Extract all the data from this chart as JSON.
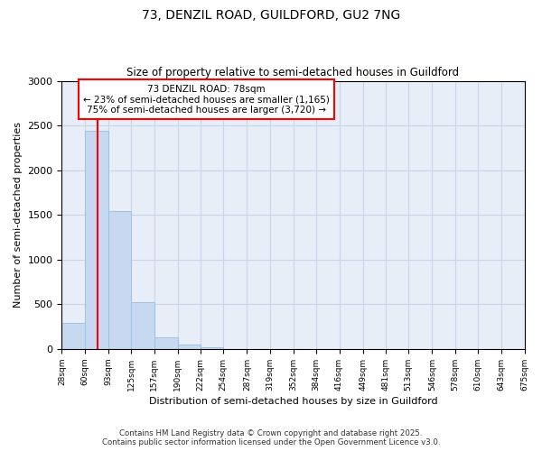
{
  "title1": "73, DENZIL ROAD, GUILDFORD, GU2 7NG",
  "title2": "Size of property relative to semi-detached houses in Guildford",
  "xlabel": "Distribution of semi-detached houses by size in Guildford",
  "ylabel": "Number of semi-detached properties",
  "property_label": "73 DENZIL ROAD: 78sqm",
  "annotation_line": "← 23% of semi-detached houses are smaller (1,165)",
  "annotation_line2": "75% of semi-detached houses are larger (3,720) →",
  "bin_edges": [
    28,
    60,
    93,
    125,
    157,
    190,
    222,
    254,
    287,
    319,
    352,
    384,
    416,
    449,
    481,
    513,
    546,
    578,
    610,
    643,
    675
  ],
  "bin_counts": [
    290,
    2440,
    1545,
    520,
    130,
    50,
    20,
    0,
    0,
    0,
    0,
    0,
    0,
    0,
    0,
    0,
    0,
    0,
    0,
    0
  ],
  "bar_color": "#c6d9f1",
  "bar_edge_color": "#9fc0e0",
  "vline_color": "red",
  "vline_x": 78,
  "grid_color": "#c8d4e8",
  "background_color": "#e8eef8",
  "ylim": [
    0,
    3000
  ],
  "yticks": [
    0,
    500,
    1000,
    1500,
    2000,
    2500,
    3000
  ],
  "footer1": "Contains HM Land Registry data © Crown copyright and database right 2025.",
  "footer2": "Contains public sector information licensed under the Open Government Licence v3.0."
}
